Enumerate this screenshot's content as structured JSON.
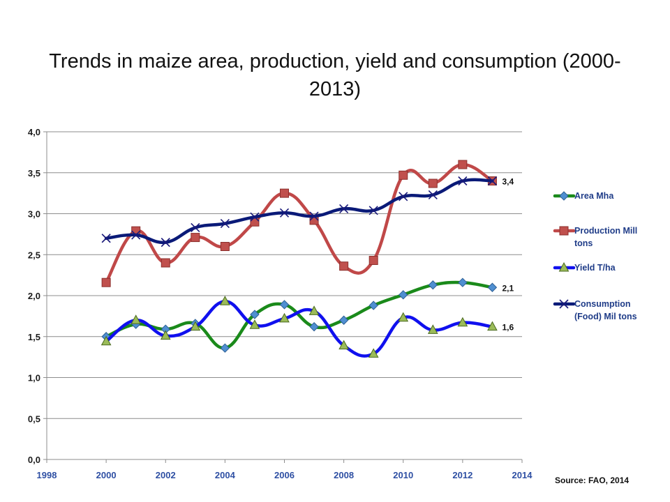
{
  "page": {
    "source": "Source: FAO, 2014"
  },
  "chart_data": {
    "type": "line",
    "title": "Trends in maize area, production, yield and consumption (2000-2013)",
    "title_lines": [
      "Trends in maize area, production, yield and consumption (2000-",
      "2013)"
    ],
    "xlabel": "",
    "ylabel": "",
    "xlim": [
      1998,
      2014
    ],
    "ylim": [
      0,
      4
    ],
    "x_ticks": [
      "1998",
      "2000",
      "2002",
      "2004",
      "2006",
      "2008",
      "2010",
      "2012",
      "2014"
    ],
    "y_ticks": [
      "0,0",
      "0,5",
      "1,0",
      "1,5",
      "2,0",
      "2,5",
      "3,0",
      "3,5",
      "4,0"
    ],
    "grid": "horizontal",
    "legend_position": "right",
    "x": [
      2000,
      2001,
      2002,
      2003,
      2004,
      2005,
      2006,
      2007,
      2008,
      2009,
      2010,
      2011,
      2012,
      2013
    ],
    "series": [
      {
        "name": "Area Mha",
        "color": "#1a8a1a",
        "marker_color": "#4f8fd1",
        "marker": "diamond",
        "values": [
          1.5,
          1.65,
          1.59,
          1.66,
          1.36,
          1.77,
          1.89,
          1.62,
          1.7,
          1.88,
          2.01,
          2.13,
          2.16,
          2.1
        ],
        "end_label": "2,1"
      },
      {
        "name": "Production Mill tons",
        "color": "#c04848",
        "marker_color": "#c0504d",
        "marker": "square",
        "values": [
          2.16,
          2.79,
          2.4,
          2.71,
          2.6,
          2.9,
          3.25,
          2.92,
          2.36,
          2.43,
          3.47,
          3.37,
          3.6,
          3.4
        ],
        "end_label": ""
      },
      {
        "name": "Yield T/ha",
        "color": "#1010ee",
        "marker_color": "#9bbb59",
        "marker": "triangle",
        "values": [
          1.44,
          1.7,
          1.51,
          1.62,
          1.93,
          1.64,
          1.72,
          1.81,
          1.39,
          1.29,
          1.73,
          1.58,
          1.67,
          1.62
        ],
        "end_label": "1,6"
      },
      {
        "name": "Consumption (Food) Mil tons",
        "color": "#0a1a78",
        "marker_color": "#1a1a7a",
        "marker": "x",
        "values": [
          2.7,
          2.74,
          2.65,
          2.83,
          2.88,
          2.96,
          3.01,
          2.97,
          3.06,
          3.04,
          3.21,
          3.23,
          3.4,
          3.4
        ],
        "end_label": "3,4"
      }
    ],
    "legend_lines": [
      [
        "Area Mha"
      ],
      [
        "Production Mill",
        "tons"
      ],
      [
        "Yield T/ha"
      ],
      [
        "Consumption",
        "(Food) Mil tons"
      ]
    ]
  }
}
